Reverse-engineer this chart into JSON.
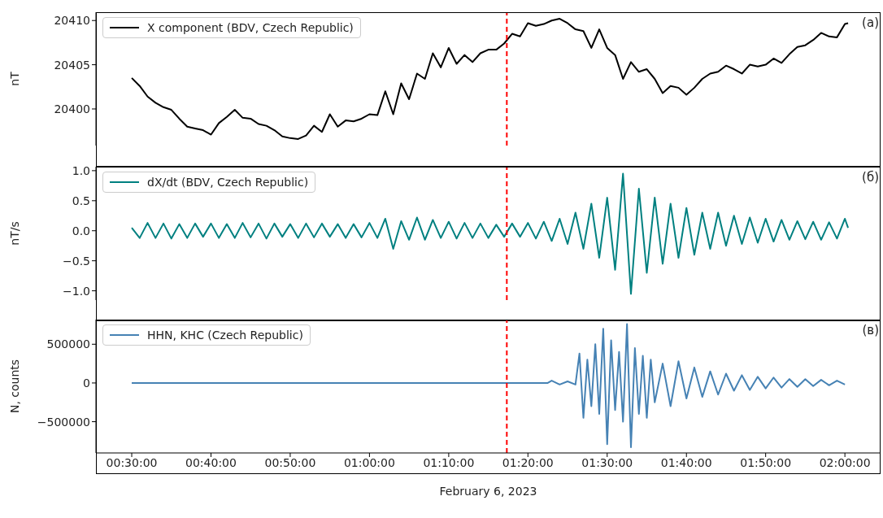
{
  "chart_data": [
    {
      "type": "line",
      "ylabel": "nT",
      "legend": "top left",
      "tick_labels": "y",
      "annotations": [
        "(а)"
      ],
      "xlim": [
        0.4247,
        2.075
      ],
      "xticks": [
        {
          "value": 0.5,
          "label": null
        },
        {
          "value": 0.6667,
          "label": null
        },
        {
          "value": 0.8333,
          "label": null
        },
        {
          "value": 1,
          "label": null
        },
        {
          "value": 1.1667,
          "label": null
        },
        {
          "value": 1.3333,
          "label": null
        },
        {
          "value": 1.5,
          "label": null
        },
        {
          "value": 1.6667,
          "label": null
        },
        {
          "value": 1.8333,
          "label": null
        },
        {
          "value": 2,
          "label": null
        }
      ],
      "ylim": [
        20395.86,
        20410.94
      ],
      "yticks": [
        20400,
        20405,
        20410
      ],
      "ref_lines": [
        {
          "axis": "x",
          "value": 1.2889,
          "color": "#ff0000",
          "line_style": "dashed"
        }
      ],
      "series": [
        {
          "name": "X component (BDV, Czech Republic)",
          "color": "#000000",
          "x": [
            0.5,
            0.5167,
            0.5333,
            0.55,
            0.5667,
            0.5833,
            0.6,
            0.6167,
            0.6333,
            0.65,
            0.6667,
            0.6833,
            0.7,
            0.7167,
            0.7333,
            0.75,
            0.7667,
            0.7833,
            0.8,
            0.8167,
            0.8333,
            0.85,
            0.8667,
            0.8833,
            0.9,
            0.9167,
            0.9333,
            0.95,
            0.9667,
            0.9833,
            1,
            1.0167,
            1.0333,
            1.05,
            1.0667,
            1.0833,
            1.1,
            1.1167,
            1.1333,
            1.15,
            1.1667,
            1.1833,
            1.2,
            1.2167,
            1.2333,
            1.25,
            1.2667,
            1.2833,
            1.3,
            1.3167,
            1.3333,
            1.35,
            1.3667,
            1.3833,
            1.4,
            1.4167,
            1.4333,
            1.45,
            1.4667,
            1.4833,
            1.5,
            1.5167,
            1.5333,
            1.55,
            1.5667,
            1.5833,
            1.6,
            1.6167,
            1.6333,
            1.65,
            1.6667,
            1.6833,
            1.7,
            1.7167,
            1.7333,
            1.75,
            1.7667,
            1.7833,
            1.8,
            1.8167,
            1.8333,
            1.85,
            1.8667,
            1.8833,
            1.9,
            1.9167,
            1.9333,
            1.95,
            1.9667,
            1.9833,
            2,
            2.0067
          ],
          "values": [
            20403.5,
            20402.6,
            20401.4,
            20400.7,
            20400.2,
            20399.9,
            20398.9,
            20398.0,
            20397.8,
            20397.6,
            20397.1,
            20398.4,
            20399.1,
            20399.9,
            20399.0,
            20398.9,
            20398.3,
            20398.1,
            20397.6,
            20396.9,
            20396.7,
            20396.6,
            20397.0,
            20398.1,
            20397.4,
            20399.4,
            20398.0,
            20398.7,
            20398.6,
            20398.9,
            20399.4,
            20399.3,
            20402.0,
            20399.4,
            20402.9,
            20401.1,
            20404.0,
            20403.4,
            20406.3,
            20404.7,
            20406.9,
            20405.1,
            20406.1,
            20405.3,
            20406.3,
            20406.7,
            20406.7,
            20407.4,
            20408.5,
            20408.2,
            20409.7,
            20409.4,
            20409.6,
            20410.0,
            20410.2,
            20409.7,
            20409.0,
            20408.8,
            20406.9,
            20409.0,
            20406.9,
            20406.1,
            20403.4,
            20405.3,
            20404.2,
            20404.5,
            20403.4,
            20401.8,
            20402.6,
            20402.4,
            20401.6,
            20402.4,
            20403.4,
            20404.0,
            20404.2,
            20404.9,
            20404.5,
            20404.0,
            20405.0,
            20404.8,
            20405.0,
            20405.7,
            20405.2,
            20406.2,
            20407.0,
            20407.2,
            20407.8,
            20408.6,
            20408.2,
            20408.1,
            20409.6,
            20409.7
          ]
        }
      ]
    },
    {
      "type": "line",
      "ylabel": "nT/s",
      "legend": "top left",
      "tick_labels": "y",
      "annotations": [
        "(б)"
      ],
      "xlim": [
        0.4247,
        2.075
      ],
      "xticks": [
        {
          "value": 0.5,
          "label": null
        },
        {
          "value": 0.6667,
          "label": null
        },
        {
          "value": 0.8333,
          "label": null
        },
        {
          "value": 1,
          "label": null
        },
        {
          "value": 1.1667,
          "label": null
        },
        {
          "value": 1.3333,
          "label": null
        },
        {
          "value": 1.5,
          "label": null
        },
        {
          "value": 1.6667,
          "label": null
        },
        {
          "value": 1.8333,
          "label": null
        },
        {
          "value": 2,
          "label": null
        }
      ],
      "ylim": [
        -1.154,
        1.066
      ],
      "yticks": [
        {
          "value": -1,
          "label": "−1.0"
        },
        {
          "value": -0.5,
          "label": "−0.5"
        },
        {
          "value": 0,
          "label": "0.0"
        },
        {
          "value": 0.5,
          "label": "0.5"
        },
        {
          "value": 1,
          "label": "1.0"
        }
      ],
      "ref_lines": [
        {
          "axis": "x",
          "value": 1.2889,
          "color": "#ff0000",
          "line_style": "dashed"
        }
      ],
      "series": [
        {
          "name": "dX/dt (BDV, Czech Republic)",
          "color": "#008080",
          "x": [
            0.5,
            0.5167,
            0.5333,
            0.55,
            0.5667,
            0.5833,
            0.6,
            0.6167,
            0.6333,
            0.65,
            0.6667,
            0.6833,
            0.7,
            0.7167,
            0.7333,
            0.75,
            0.7667,
            0.7833,
            0.8,
            0.8167,
            0.8333,
            0.85,
            0.8667,
            0.8833,
            0.9,
            0.9167,
            0.9333,
            0.95,
            0.9667,
            0.9833,
            1,
            1.0167,
            1.0333,
            1.05,
            1.0667,
            1.0833,
            1.1,
            1.1167,
            1.1333,
            1.15,
            1.1667,
            1.1833,
            1.2,
            1.2167,
            1.2333,
            1.25,
            1.2667,
            1.2833,
            1.3,
            1.3167,
            1.3333,
            1.35,
            1.3667,
            1.3833,
            1.4,
            1.4167,
            1.4333,
            1.45,
            1.4667,
            1.4833,
            1.5,
            1.5167,
            1.5333,
            1.55,
            1.5667,
            1.5833,
            1.6,
            1.6167,
            1.6333,
            1.65,
            1.6667,
            1.6833,
            1.7,
            1.7167,
            1.7333,
            1.75,
            1.7667,
            1.7833,
            1.8,
            1.8167,
            1.8333,
            1.85,
            1.8667,
            1.8833,
            1.9,
            1.9167,
            1.9333,
            1.95,
            1.9667,
            1.9833,
            2,
            2.0067
          ],
          "values": [
            0.05,
            -0.12,
            0.13,
            -0.12,
            0.12,
            -0.13,
            0.11,
            -0.12,
            0.12,
            -0.1,
            0.12,
            -0.12,
            0.11,
            -0.12,
            0.13,
            -0.11,
            0.12,
            -0.13,
            0.12,
            -0.1,
            0.11,
            -0.12,
            0.12,
            -0.11,
            0.12,
            -0.1,
            0.11,
            -0.12,
            0.11,
            -0.11,
            0.13,
            -0.12,
            0.2,
            -0.3,
            0.16,
            -0.15,
            0.22,
            -0.15,
            0.18,
            -0.12,
            0.15,
            -0.13,
            0.13,
            -0.12,
            0.12,
            -0.12,
            0.1,
            -0.1,
            0.12,
            -0.1,
            0.13,
            -0.13,
            0.15,
            -0.17,
            0.2,
            -0.22,
            0.3,
            -0.3,
            0.45,
            -0.45,
            0.55,
            -0.65,
            0.95,
            -1.05,
            0.7,
            -0.7,
            0.55,
            -0.55,
            0.45,
            -0.45,
            0.38,
            -0.4,
            0.3,
            -0.3,
            0.3,
            -0.25,
            0.25,
            -0.22,
            0.22,
            -0.2,
            0.2,
            -0.18,
            0.18,
            -0.15,
            0.16,
            -0.14,
            0.15,
            -0.15,
            0.14,
            -0.13,
            0.2,
            0.05
          ]
        }
      ]
    },
    {
      "type": "line",
      "ylabel": "N, counts",
      "xlabel": "February 6, 2023",
      "legend": "top left",
      "annotations": [
        "(в)"
      ],
      "xlim": [
        0.4247,
        2.075
      ],
      "xticks": [
        {
          "value": 0.5,
          "label": "00:30:00"
        },
        {
          "value": 0.6667,
          "label": "00:40:00"
        },
        {
          "value": 0.8333,
          "label": "00:50:00"
        },
        {
          "value": 1,
          "label": "01:00:00"
        },
        {
          "value": 1.1667,
          "label": "01:10:00"
        },
        {
          "value": 1.3333,
          "label": "01:20:00"
        },
        {
          "value": 1.5,
          "label": "01:30:00"
        },
        {
          "value": 1.6667,
          "label": "01:40:00"
        },
        {
          "value": 1.8333,
          "label": "01:50:00"
        },
        {
          "value": 2,
          "label": "02:00:00"
        }
      ],
      "ylim": [
        -903400,
        818200
      ],
      "yticks": [
        {
          "value": -500000,
          "label": "−500000"
        },
        0,
        500000
      ],
      "ref_lines": [
        {
          "axis": "x",
          "value": 1.2889,
          "color": "#ff0000",
          "line_style": "dashed"
        }
      ],
      "series": [
        {
          "name": "HHN, KHC (Czech Republic)",
          "color": "#4682b4",
          "x": [
            0.5,
            1.375,
            1.3833,
            1.4,
            1.4167,
            1.4333,
            1.4417,
            1.45,
            1.4583,
            1.4667,
            1.475,
            1.4833,
            1.4917,
            1.5,
            1.5083,
            1.5167,
            1.525,
            1.5333,
            1.5417,
            1.55,
            1.5583,
            1.5667,
            1.575,
            1.5833,
            1.5917,
            1.6,
            1.6167,
            1.6333,
            1.65,
            1.6667,
            1.6833,
            1.7,
            1.7167,
            1.7333,
            1.75,
            1.7667,
            1.7833,
            1.8,
            1.8167,
            1.8333,
            1.85,
            1.8667,
            1.8833,
            1.9,
            1.9167,
            1.9333,
            1.95,
            1.9667,
            1.9833,
            2
          ],
          "values": [
            0,
            0,
            30000,
            -20000,
            20000,
            -20000,
            380000,
            -450000,
            300000,
            -300000,
            500000,
            -400000,
            700000,
            -790000,
            550000,
            -350000,
            400000,
            -500000,
            760000,
            -830000,
            450000,
            -400000,
            350000,
            -450000,
            300000,
            -250000,
            250000,
            -300000,
            280000,
            -200000,
            200000,
            -180000,
            150000,
            -150000,
            120000,
            -100000,
            100000,
            -90000,
            80000,
            -70000,
            70000,
            -60000,
            50000,
            -50000,
            50000,
            -40000,
            40000,
            -30000,
            30000,
            -20000
          ]
        }
      ]
    }
  ]
}
